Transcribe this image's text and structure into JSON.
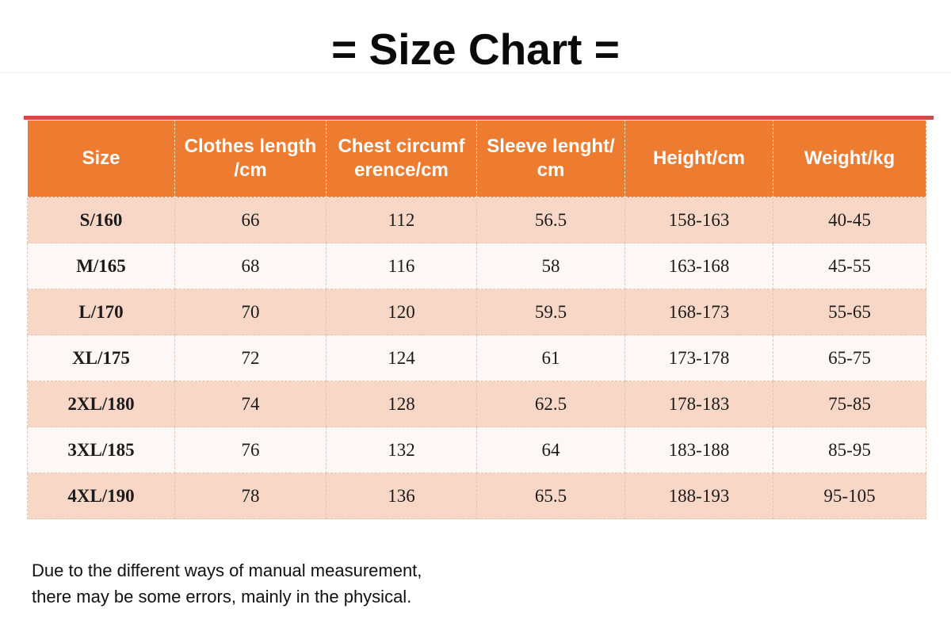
{
  "title": "= Size Chart =",
  "note": [
    "Due to the different ways of manual measurement,",
    "there may be some errors, mainly in the physical."
  ],
  "colors": {
    "header_bg": "#ED7B30",
    "header_text": "#FFFFFF",
    "top_stripe": "#D14B44",
    "row_alt_pink": "#F8D7C6",
    "row_base_white": "#FDF8F5",
    "body_text": "#1B1B1B"
  },
  "chart_data": {
    "type": "table",
    "title": "= Size Chart =",
    "columns": [
      "Size",
      "Clothes length\n/cm",
      "Chest circumf\nerence/cm",
      "Sleeve lenght/\ncm",
      "Height/cm",
      "Weight/kg"
    ],
    "rows": [
      [
        "S/160",
        "66",
        "112",
        "56.5",
        "158-163",
        "40-45"
      ],
      [
        "M/165",
        "68",
        "116",
        "58",
        "163-168",
        "45-55"
      ],
      [
        "L/170",
        "70",
        "120",
        "59.5",
        "168-173",
        "55-65"
      ],
      [
        "XL/175",
        "72",
        "124",
        "61",
        "173-178",
        "65-75"
      ],
      [
        "2XL/180",
        "74",
        "128",
        "62.5",
        "178-183",
        "75-85"
      ],
      [
        "3XL/185",
        "76",
        "132",
        "64",
        "183-188",
        "85-95"
      ],
      [
        "4XL/190",
        "78",
        "136",
        "65.5",
        "188-193",
        "95-105"
      ]
    ]
  }
}
